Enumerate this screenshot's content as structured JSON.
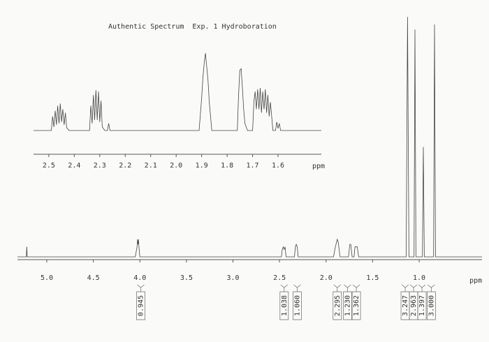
{
  "chart_data": [
    {
      "type": "line",
      "title": "Authentic Spectrum  Exp. 1 Hydroboration",
      "xlabel": "ppm",
      "color": "#444444",
      "xlim": [
        2.56,
        1.43
      ],
      "ylim": [
        0,
        120
      ],
      "xticks": [
        2.5,
        2.4,
        2.3,
        2.2,
        2.1,
        {
          "value": 2.0,
          "label": "2.0"
        },
        1.9,
        1.8,
        1.7,
        1.6
      ],
      "x": [
        2.56,
        2.49,
        2.485,
        2.48,
        2.475,
        2.47,
        2.465,
        2.46,
        2.455,
        2.45,
        2.445,
        2.44,
        2.435,
        2.43,
        2.42,
        2.34,
        2.335,
        2.33,
        2.325,
        2.32,
        2.315,
        2.31,
        2.305,
        2.3,
        2.295,
        2.29,
        2.28,
        2.27,
        2.265,
        2.26,
        1.91,
        1.9,
        1.895,
        1.89,
        1.885,
        1.88,
        1.875,
        1.87,
        1.86,
        1.76,
        1.755,
        1.75,
        1.745,
        1.74,
        1.735,
        1.73,
        1.72,
        1.7,
        1.695,
        1.69,
        1.685,
        1.68,
        1.675,
        1.67,
        1.665,
        1.66,
        1.655,
        1.65,
        1.645,
        1.64,
        1.635,
        1.63,
        1.62,
        1.61,
        1.605,
        1.6,
        1.595,
        1.59,
        1.43
      ],
      "values": [
        0,
        0,
        20,
        5,
        28,
        8,
        35,
        10,
        38,
        12,
        30,
        8,
        25,
        4,
        0,
        0,
        35,
        10,
        50,
        15,
        57,
        15,
        55,
        12,
        42,
        5,
        0,
        0,
        10,
        0,
        0,
        45,
        75,
        95,
        109,
        90,
        70,
        40,
        0,
        0,
        50,
        85,
        87,
        60,
        30,
        10,
        0,
        0,
        40,
        55,
        30,
        58,
        30,
        60,
        25,
        55,
        30,
        58,
        25,
        50,
        20,
        40,
        0,
        0,
        12,
        3,
        10,
        0,
        0
      ]
    },
    {
      "type": "line",
      "xlabel": "ppm",
      "color": "#444444",
      "xlim": [
        5.315,
        0.325
      ],
      "ylim": [
        0,
        100
      ],
      "xticks": [
        {
          "value": 5.0,
          "label": "5.0"
        },
        4.5,
        {
          "value": 4.0,
          "label": "4.0"
        },
        3.5,
        {
          "value": 3.0,
          "label": "3.0"
        },
        2.5,
        {
          "value": 2.0,
          "label": "2.0"
        },
        1.5,
        {
          "value": 1.0,
          "label": "1.0"
        }
      ],
      "x": [
        5.315,
        5.22,
        5.215,
        5.21,
        4.05,
        4.03,
        4.025,
        4.02,
        4.015,
        4.01,
        4.0,
        2.48,
        2.47,
        2.46,
        2.45,
        2.44,
        2.43,
        2.34,
        2.33,
        2.32,
        2.31,
        2.3,
        1.92,
        1.9,
        1.88,
        1.87,
        1.85,
        1.76,
        1.745,
        1.735,
        1.72,
        1.7,
        1.69,
        1.675,
        1.665,
        1.65,
        1.14,
        1.125,
        1.11,
        1.055,
        1.045,
        1.035,
        0.965,
        0.955,
        0.945,
        0.845,
        0.835,
        0.825,
        0.325
      ],
      "values": [
        0,
        0,
        4,
        0,
        0,
        4,
        7,
        5,
        7,
        4,
        0,
        0,
        3,
        4,
        3,
        4,
        0,
        0,
        4,
        5,
        4,
        0,
        0,
        4,
        7,
        6,
        0,
        0,
        5,
        5,
        0,
        0,
        4,
        4,
        4,
        0,
        0,
        96,
        0,
        0,
        91,
        0,
        0,
        44,
        0,
        0,
        93,
        0,
        0
      ],
      "integrals": {
        "x": [
          3.99,
          2.45,
          2.31,
          1.88,
          1.77,
          1.675,
          1.15,
          1.06,
          0.97,
          0.87
        ],
        "values": [
          0.945,
          1.038,
          1.06,
          2.295,
          1.23,
          1.362,
          3.247,
          2.963,
          1.397,
          3.0
        ],
        "value_labels": [
          "0.945",
          "1.038",
          "1.060",
          "2.295",
          "1.230",
          "1.362",
          "3.247",
          "2.963",
          "1.397",
          "3.000"
        ]
      }
    }
  ]
}
